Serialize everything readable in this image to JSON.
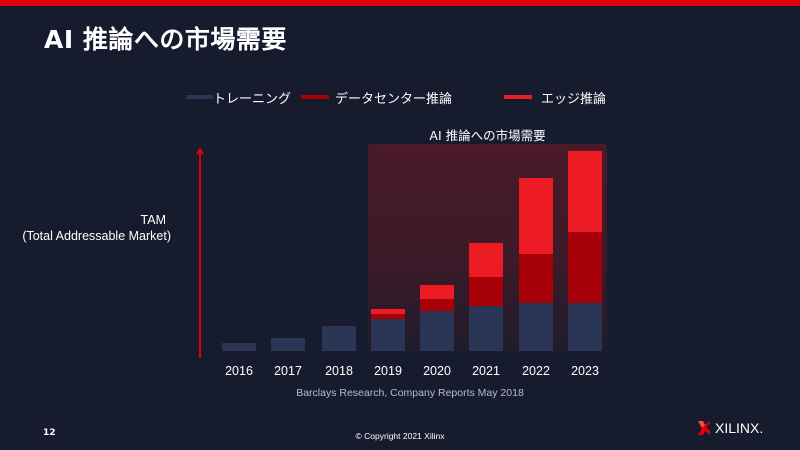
{
  "slide": {
    "title": "AI 推論への市場需要",
    "page_number": "12",
    "copyright": "© Copyright 2021 Xilinx",
    "logo_text": "XILINX.",
    "accent_color": "#e2000f",
    "background_color": "#161c2d"
  },
  "legend": [
    {
      "label": "トレーニング",
      "color": "#2b3555"
    },
    {
      "label": "データセンター推論",
      "color": "#a60008"
    },
    {
      "label": "エッジ推論",
      "color": "#ed1c24"
    }
  ],
  "highlight": {
    "label": "AI 推論への市場需要",
    "range": [
      "2019",
      "2023"
    ]
  },
  "y_axis": {
    "line1": "TAM",
    "line2": "(Total Addressable Market)"
  },
  "source": "Barclays Research, Company Reports May 2018",
  "chart_data": {
    "type": "bar",
    "stacked": true,
    "title": "AI 推論への市場需要",
    "xlabel": "",
    "ylabel": "TAM (Total Addressable Market)",
    "units": "relative (no numeric axis shown)",
    "categories": [
      "2016",
      "2017",
      "2018",
      "2019",
      "2020",
      "2021",
      "2022",
      "2023"
    ],
    "series": [
      {
        "name": "トレーニング",
        "color": "#2b3555",
        "values": [
          8,
          13,
          25,
          32,
          40,
          45,
          48,
          48
        ]
      },
      {
        "name": "データセンター推論",
        "color": "#a60008",
        "values": [
          0,
          0,
          0,
          5,
          12,
          29,
          49,
          71
        ]
      },
      {
        "name": "エッジ推論",
        "color": "#ed1c24",
        "values": [
          0,
          0,
          0,
          5,
          14,
          34,
          76,
          81
        ]
      }
    ],
    "annotations": [
      "AI 推論への市場需要 (highlighted region 2019–2023)"
    ],
    "grid": false,
    "legend_position": "top",
    "source": "Barclays Research, Company Reports May 2018"
  }
}
